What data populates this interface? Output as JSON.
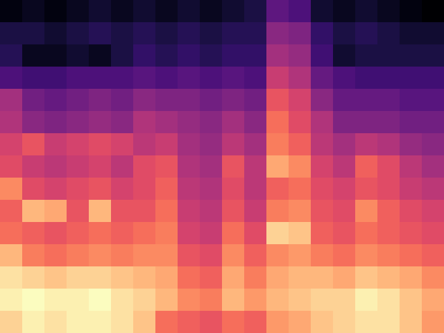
{
  "chart_data": {
    "type": "heatmap",
    "color": "magma",
    "tick_labels": false,
    "cells": [
      [
        18,
        20,
        18,
        20,
        22,
        20,
        22,
        20,
        22,
        20,
        22,
        24,
        35,
        32,
        22,
        20,
        22,
        20,
        18,
        16
      ],
      [
        24,
        24,
        22,
        24,
        26,
        24,
        26,
        24,
        26,
        24,
        26,
        26,
        42,
        40,
        28,
        24,
        26,
        24,
        22,
        22
      ],
      [
        26,
        20,
        20,
        22,
        20,
        24,
        28,
        26,
        28,
        26,
        28,
        28,
        46,
        44,
        30,
        22,
        24,
        24,
        24,
        24
      ],
      [
        32,
        30,
        30,
        32,
        32,
        32,
        34,
        32,
        34,
        32,
        34,
        32,
        52,
        48,
        36,
        32,
        30,
        30,
        30,
        30
      ],
      [
        46,
        38,
        36,
        38,
        40,
        38,
        42,
        40,
        40,
        38,
        40,
        38,
        58,
        54,
        42,
        36,
        36,
        36,
        34,
        34
      ],
      [
        48,
        42,
        40,
        42,
        44,
        42,
        48,
        46,
        44,
        42,
        46,
        42,
        62,
        56,
        48,
        40,
        40,
        40,
        38,
        38
      ],
      [
        54,
        58,
        52,
        54,
        56,
        54,
        50,
        52,
        46,
        44,
        50,
        46,
        64,
        60,
        50,
        46,
        50,
        48,
        44,
        42
      ],
      [
        56,
        52,
        50,
        52,
        54,
        50,
        56,
        58,
        48,
        46,
        58,
        50,
        70,
        66,
        54,
        50,
        60,
        56,
        50,
        46
      ],
      [
        66,
        56,
        54,
        56,
        58,
        54,
        56,
        60,
        50,
        48,
        56,
        50,
        60,
        62,
        56,
        54,
        58,
        56,
        52,
        50
      ],
      [
        60,
        72,
        70,
        58,
        72,
        58,
        58,
        62,
        52,
        50,
        58,
        52,
        64,
        66,
        58,
        56,
        66,
        60,
        56,
        54
      ],
      [
        62,
        60,
        58,
        60,
        62,
        60,
        62,
        64,
        54,
        52,
        62,
        56,
        76,
        74,
        60,
        58,
        62,
        60,
        58,
        56
      ],
      [
        72,
        64,
        62,
        64,
        66,
        64,
        66,
        66,
        58,
        56,
        66,
        60,
        66,
        68,
        64,
        62,
        66,
        64,
        62,
        60
      ],
      [
        78,
        76,
        74,
        76,
        76,
        74,
        72,
        70,
        62,
        60,
        70,
        64,
        70,
        72,
        72,
        70,
        74,
        72,
        70,
        66
      ],
      [
        80,
        82,
        80,
        80,
        82,
        78,
        76,
        72,
        66,
        64,
        72,
        68,
        72,
        74,
        76,
        76,
        80,
        78,
        74,
        70
      ],
      [
        76,
        80,
        78,
        80,
        80,
        78,
        74,
        62,
        60,
        58,
        62,
        60,
        68,
        70,
        74,
        76,
        78,
        78,
        74,
        68
      ]
    ]
  }
}
